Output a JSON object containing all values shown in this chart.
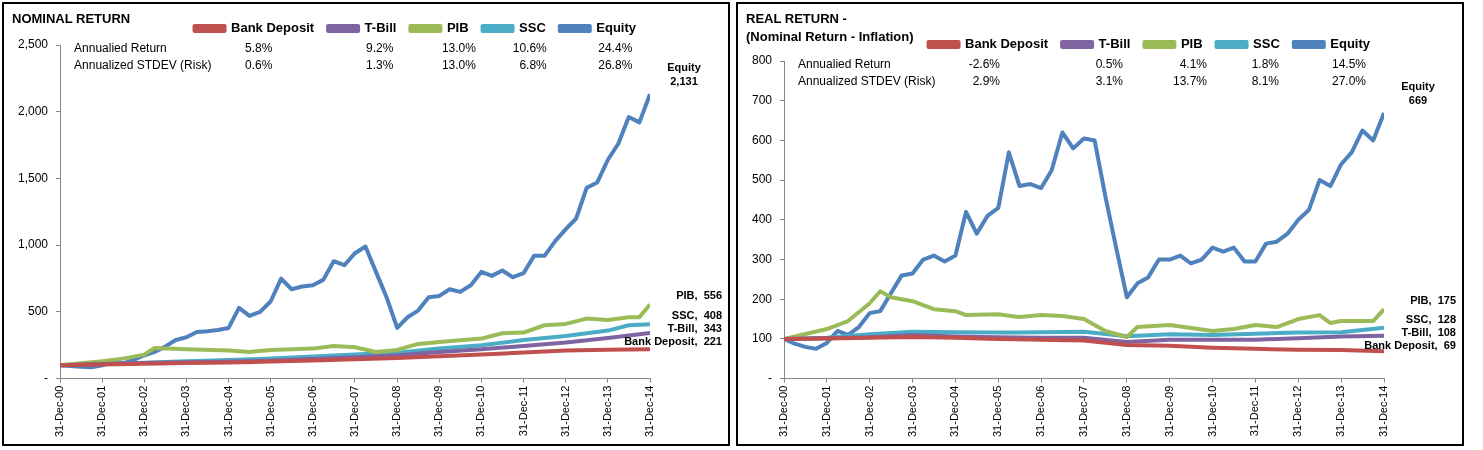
{
  "chart_data": [
    {
      "type": "line",
      "title": "NOMINAL RETURN",
      "legend": "top",
      "x": [
        "2000-12-31",
        "2001-03-31",
        "2001-06-30",
        "2001-09-30",
        "2001-12-31",
        "2002-03-31",
        "2002-06-30",
        "2002-09-30",
        "2002-12-31",
        "2003-03-31",
        "2003-06-30",
        "2003-09-30",
        "2003-12-31",
        "2004-03-31",
        "2004-06-30",
        "2004-09-30",
        "2004-12-31",
        "2005-03-31",
        "2005-06-30",
        "2005-09-30",
        "2005-12-31",
        "2006-03-31",
        "2006-06-30",
        "2006-09-30",
        "2006-12-31",
        "2007-03-31",
        "2007-06-30",
        "2007-09-30",
        "2007-12-31",
        "2008-03-31",
        "2008-06-30",
        "2008-09-30",
        "2008-12-31",
        "2009-03-31",
        "2009-06-30",
        "2009-09-30",
        "2009-12-31",
        "2010-03-31",
        "2010-06-30",
        "2010-09-30",
        "2010-12-31",
        "2011-03-31",
        "2011-06-30",
        "2011-09-30",
        "2011-12-31",
        "2012-03-31",
        "2012-06-30",
        "2012-09-30",
        "2012-12-31",
        "2013-03-31",
        "2013-06-30",
        "2013-09-30",
        "2013-12-31",
        "2014-03-31",
        "2014-06-30",
        "2014-09-30",
        "2014-12-31"
      ],
      "series": [
        {
          "name": "Bank Deposit",
          "color": "#c0504d",
          "x": [
            "2000-12-31",
            "2001-12-31",
            "2002-12-31",
            "2003-12-31",
            "2004-12-31",
            "2005-12-31",
            "2006-12-31",
            "2007-12-31",
            "2008-12-31",
            "2009-12-31",
            "2010-12-31",
            "2011-12-31",
            "2012-12-31",
            "2013-12-31",
            "2014-12-31"
          ],
          "values": [
            100,
            106,
            112,
            117,
            121,
            128,
            136,
            145,
            155,
            168,
            181,
            196,
            210,
            216,
            221
          ]
        },
        {
          "name": "T-Bill",
          "color": "#8064a2",
          "x": [
            "2000-12-31",
            "2001-12-31",
            "2002-12-31",
            "2003-12-31",
            "2004-12-31",
            "2005-12-31",
            "2006-12-31",
            "2007-12-31",
            "2008-12-31",
            "2009-12-31",
            "2010-12-31",
            "2011-12-31",
            "2012-12-31",
            "2013-12-31",
            "2014-12-31"
          ],
          "values": [
            100,
            109,
            118,
            123,
            127,
            135,
            147,
            160,
            175,
            200,
            220,
            245,
            270,
            305,
            343
          ]
        },
        {
          "name": "PIB",
          "color": "#9bbb59",
          "x": [
            "2000-12-31",
            "2001-12-31",
            "2002-06-30",
            "2002-12-31",
            "2003-03-31",
            "2003-12-31",
            "2004-12-31",
            "2005-06-30",
            "2005-12-31",
            "2006-12-31",
            "2007-06-30",
            "2007-12-31",
            "2008-06-30",
            "2008-12-31",
            "2009-06-30",
            "2009-12-31",
            "2010-12-31",
            "2011-06-30",
            "2011-12-31",
            "2012-06-30",
            "2012-12-31",
            "2013-06-30",
            "2013-12-31",
            "2014-06-30",
            "2014-09-30",
            "2014-12-31"
          ],
          "values": [
            100,
            130,
            150,
            180,
            230,
            220,
            210,
            200,
            215,
            225,
            245,
            235,
            200,
            215,
            260,
            275,
            300,
            340,
            345,
            400,
            410,
            450,
            440,
            460,
            460,
            556
          ]
        },
        {
          "name": "SSC",
          "color": "#4bacc6",
          "x": [
            "2000-12-31",
            "2001-12-31",
            "2002-12-31",
            "2003-12-31",
            "2004-12-31",
            "2005-12-31",
            "2006-12-31",
            "2007-12-31",
            "2008-12-31",
            "2009-12-31",
            "2010-12-31",
            "2011-12-31",
            "2012-12-31",
            "2013-12-31",
            "2014-06-30",
            "2014-12-31"
          ],
          "values": [
            100,
            110,
            120,
            130,
            140,
            150,
            165,
            180,
            195,
            225,
            250,
            290,
            320,
            360,
            400,
            408
          ]
        },
        {
          "name": "Equity",
          "color": "#4f81bd",
          "values": [
            100,
            95,
            90,
            85,
            100,
            125,
            115,
            140,
            175,
            200,
            240,
            290,
            310,
            350,
            355,
            365,
            380,
            530,
            470,
            500,
            580,
            750,
            670,
            690,
            700,
            740,
            880,
            850,
            940,
            990,
            800,
            610,
            380,
            460,
            510,
            610,
            620,
            670,
            650,
            700,
            800,
            770,
            810,
            760,
            790,
            920,
            920,
            1030,
            1120,
            1200,
            1430,
            1470,
            1640,
            1760,
            1960,
            1920,
            2131
          ]
        }
      ],
      "xlim": [
        "2000-12-31",
        "2014-12-31"
      ],
      "xticks": [
        {
          "value": "2000-12-31",
          "label": "31-Dec-00"
        },
        {
          "value": "2001-12-31",
          "label": "31-Dec-01"
        },
        {
          "value": "2002-12-31",
          "label": "31-Dec-02"
        },
        {
          "value": "2003-12-31",
          "label": "31-Dec-03"
        },
        {
          "value": "2004-12-31",
          "label": "31-Dec-04"
        },
        {
          "value": "2005-12-31",
          "label": "31-Dec-05"
        },
        {
          "value": "2006-12-31",
          "label": "31-Dec-06"
        },
        {
          "value": "2007-12-31",
          "label": "31-Dec-07"
        },
        {
          "value": "2008-12-31",
          "label": "31-Dec-08"
        },
        {
          "value": "2009-12-31",
          "label": "31-Dec-09"
        },
        {
          "value": "2010-12-31",
          "label": "31-Dec-10"
        },
        {
          "value": "2011-12-31",
          "label": "31-Dec-11"
        },
        {
          "value": "2012-12-31",
          "label": "31-Dec-12"
        },
        {
          "value": "2013-12-31",
          "label": "31-Dec-13"
        },
        {
          "value": "2014-12-31",
          "label": "31-Dec-14"
        }
      ],
      "ylim": [
        0,
        2500
      ],
      "yticks": [
        {
          "value": 0,
          "label": "-"
        },
        500,
        {
          "value": 1000,
          "label": "1,000"
        },
        {
          "value": 1500,
          "label": "1,500"
        },
        {
          "value": 2000,
          "label": "2,000"
        },
        {
          "value": 2500,
          "label": "2,500"
        }
      ],
      "annotations": [
        "Annualied Return",
        "5.8%",
        "9.2%",
        "13.0%",
        "10.6%",
        "24.4%",
        "Annualized STDEV (Risk)",
        "0.6%",
        "1.3%",
        "13.0%",
        "6.8%",
        "26.8%",
        {
          "text": "Equity\n2,131",
          "x": "2014-12-31",
          "y": 2131
        },
        {
          "text": "PIB,  556",
          "x": "2014-12-31",
          "y": 556
        },
        {
          "text": "SSC,  408",
          "x": "2014-12-31",
          "y": 408
        },
        {
          "text": "T-Bill,  343",
          "x": "2014-12-31",
          "y": 343
        },
        {
          "text": "Bank Deposit,  221",
          "x": "2014-12-31",
          "y": 221
        }
      ]
    },
    {
      "type": "line",
      "title": "REAL RETURN -\n(Nominal Return - Inflation)",
      "legend": "top",
      "x": [
        "2000-12-31",
        "2001-03-31",
        "2001-06-30",
        "2001-09-30",
        "2001-12-31",
        "2002-03-31",
        "2002-06-30",
        "2002-09-30",
        "2002-12-31",
        "2003-03-31",
        "2003-06-30",
        "2003-09-30",
        "2003-12-31",
        "2004-03-31",
        "2004-06-30",
        "2004-09-30",
        "2004-12-31",
        "2005-03-31",
        "2005-06-30",
        "2005-09-30",
        "2005-12-31",
        "2006-03-31",
        "2006-06-30",
        "2006-09-30",
        "2006-12-31",
        "2007-03-31",
        "2007-06-30",
        "2007-09-30",
        "2007-12-31",
        "2008-03-31",
        "2008-06-30",
        "2008-09-30",
        "2008-12-31",
        "2009-03-31",
        "2009-06-30",
        "2009-09-30",
        "2009-12-31",
        "2010-03-31",
        "2010-06-30",
        "2010-09-30",
        "2010-12-31",
        "2011-03-31",
        "2011-06-30",
        "2011-09-30",
        "2011-12-31",
        "2012-03-31",
        "2012-06-30",
        "2012-09-30",
        "2012-12-31",
        "2013-03-31",
        "2013-06-30",
        "2013-09-30",
        "2013-12-31",
        "2014-03-31",
        "2014-06-30",
        "2014-09-30",
        "2014-12-31"
      ],
      "series": [
        {
          "name": "Bank Deposit",
          "color": "#c0504d",
          "x": [
            "2000-12-31",
            "2001-12-31",
            "2002-12-31",
            "2003-12-31",
            "2004-12-31",
            "2005-12-31",
            "2006-12-31",
            "2007-12-31",
            "2008-12-31",
            "2009-12-31",
            "2010-12-31",
            "2011-12-31",
            "2012-12-31",
            "2013-12-31",
            "2014-12-31"
          ],
          "values": [
            100,
            101,
            103,
            105,
            103,
            100,
            98,
            96,
            85,
            83,
            78,
            75,
            73,
            72,
            69
          ]
        },
        {
          "name": "T-Bill",
          "color": "#8064a2",
          "x": [
            "2000-12-31",
            "2001-12-31",
            "2002-12-31",
            "2003-12-31",
            "2004-12-31",
            "2005-12-31",
            "2006-12-31",
            "2007-12-31",
            "2008-12-31",
            "2009-12-31",
            "2010-12-31",
            "2011-12-31",
            "2012-12-31",
            "2013-12-31",
            "2014-12-31"
          ],
          "values": [
            100,
            102,
            104,
            110,
            106,
            104,
            103,
            103,
            92,
            98,
            98,
            98,
            102,
            106,
            108
          ]
        },
        {
          "name": "PIB",
          "color": "#9bbb59",
          "x": [
            "2000-12-31",
            "2001-12-31",
            "2002-06-30",
            "2002-12-31",
            "2003-03-31",
            "2003-06-30",
            "2003-12-31",
            "2004-06-30",
            "2004-12-31",
            "2005-03-31",
            "2005-12-31",
            "2006-06-30",
            "2006-12-31",
            "2007-06-30",
            "2007-12-31",
            "2008-06-30",
            "2008-12-31",
            "2009-03-31",
            "2009-12-31",
            "2010-12-31",
            "2011-06-30",
            "2011-12-31",
            "2012-06-30",
            "2012-12-31",
            "2013-06-30",
            "2013-09-30",
            "2013-12-31",
            "2014-09-30",
            "2014-12-31"
          ],
          "values": [
            100,
            125,
            145,
            190,
            220,
            205,
            195,
            175,
            170,
            160,
            162,
            155,
            160,
            158,
            150,
            120,
            105,
            130,
            135,
            120,
            125,
            135,
            130,
            150,
            160,
            140,
            145,
            145,
            175
          ]
        },
        {
          "name": "SSC",
          "color": "#4bacc6",
          "x": [
            "2000-12-31",
            "2001-12-31",
            "2002-12-31",
            "2003-12-31",
            "2004-12-31",
            "2005-12-31",
            "2006-12-31",
            "2007-12-31",
            "2008-12-31",
            "2009-12-31",
            "2010-12-31",
            "2011-12-31",
            "2012-12-31",
            "2013-12-31",
            "2014-12-31"
          ],
          "values": [
            100,
            103,
            112,
            118,
            117,
            116,
            117,
            118,
            107,
            112,
            110,
            113,
            116,
            117,
            128
          ]
        },
        {
          "name": "Equity",
          "color": "#4f81bd",
          "values": [
            100,
            88,
            80,
            75,
            90,
            120,
            110,
            130,
            165,
            170,
            215,
            260,
            265,
            300,
            310,
            295,
            310,
            420,
            365,
            410,
            430,
            570,
            485,
            490,
            480,
            525,
            620,
            580,
            605,
            600,
            460,
            330,
            205,
            240,
            255,
            300,
            300,
            310,
            290,
            300,
            330,
            320,
            330,
            295,
            295,
            340,
            345,
            365,
            400,
            425,
            500,
            485,
            540,
            570,
            625,
            600,
            669
          ]
        }
      ],
      "xlim": [
        "2000-12-31",
        "2014-12-31"
      ],
      "xticks": [
        {
          "value": "2000-12-31",
          "label": "31-Dec-00"
        },
        {
          "value": "2001-12-31",
          "label": "31-Dec-01"
        },
        {
          "value": "2002-12-31",
          "label": "31-Dec-02"
        },
        {
          "value": "2003-12-31",
          "label": "31-Dec-03"
        },
        {
          "value": "2004-12-31",
          "label": "31-Dec-04"
        },
        {
          "value": "2005-12-31",
          "label": "31-Dec-05"
        },
        {
          "value": "2006-12-31",
          "label": "31-Dec-06"
        },
        {
          "value": "2007-12-31",
          "label": "31-Dec-07"
        },
        {
          "value": "2008-12-31",
          "label": "31-Dec-08"
        },
        {
          "value": "2009-12-31",
          "label": "31-Dec-09"
        },
        {
          "value": "2010-12-31",
          "label": "31-Dec-10"
        },
        {
          "value": "2011-12-31",
          "label": "31-Dec-11"
        },
        {
          "value": "2012-12-31",
          "label": "31-Dec-12"
        },
        {
          "value": "2013-12-31",
          "label": "31-Dec-13"
        },
        {
          "value": "2014-12-31",
          "label": "31-Dec-14"
        }
      ],
      "ylim": [
        0,
        800
      ],
      "yticks": [
        {
          "value": 0,
          "label": "-"
        },
        100,
        200,
        300,
        400,
        500,
        600,
        700,
        800
      ],
      "annotations": [
        "Annualied Return",
        "-2.6%",
        "0.5%",
        "4.1%",
        "1.8%",
        "14.5%",
        "Annualized STDEV (Risk)",
        "2.9%",
        "3.1%",
        "13.7%",
        "8.1%",
        "27.0%",
        {
          "text": "Equity\n669",
          "x": "2014-12-31",
          "y": 669
        },
        {
          "text": "PIB,  175",
          "x": "2014-12-31",
          "y": 175
        },
        {
          "text": "SSC,  128",
          "x": "2014-12-31",
          "y": 128
        },
        {
          "text": "T-Bill,  108",
          "x": "2014-12-31",
          "y": 108
        },
        {
          "text": "Bank Deposit,  69",
          "x": "2014-12-31",
          "y": 69
        }
      ]
    }
  ]
}
